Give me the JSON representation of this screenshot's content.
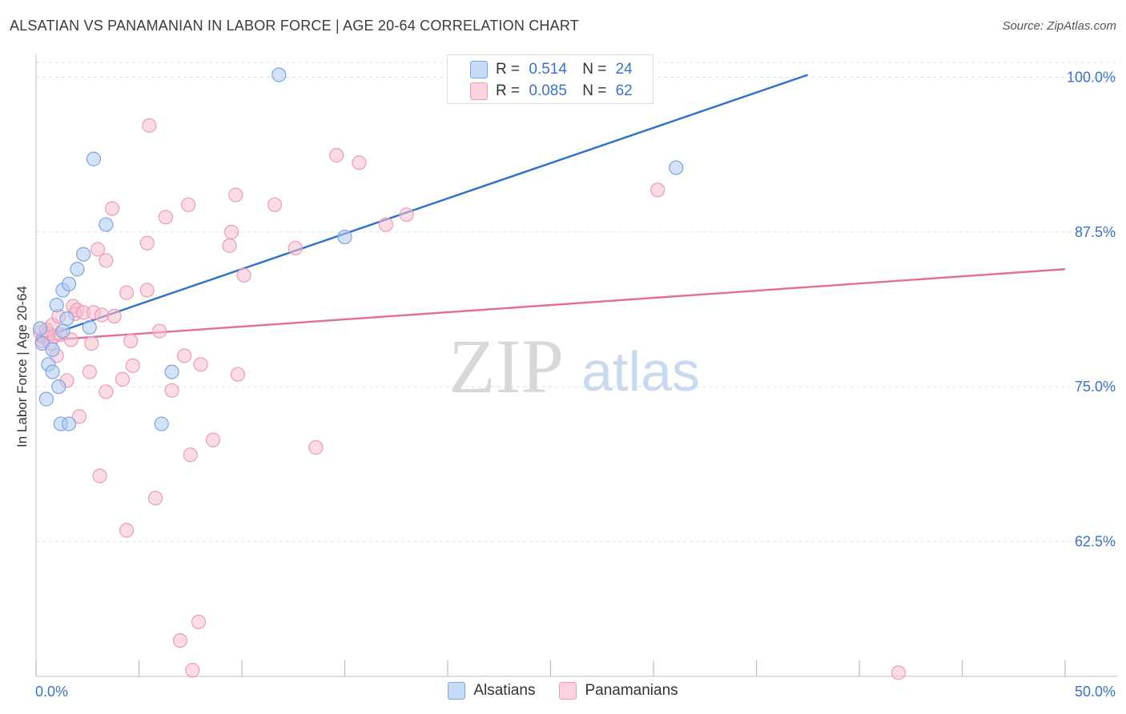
{
  "title": "ALSATIAN VS PANAMANIAN IN LABOR FORCE | AGE 20-64 CORRELATION CHART",
  "source": "Source: ZipAtlas.com",
  "watermark": {
    "zip": "ZIP",
    "atlas": "atlas"
  },
  "colors": {
    "blue_fill": "#aecbf2",
    "blue_stroke": "#7aa6e0",
    "blue_line": "#2e6fd0",
    "pink_fill": "#f8bfd0",
    "pink_stroke": "#ee9ab5",
    "pink_line": "#e56b98",
    "tick_label": "#3b73c8"
  },
  "stats": {
    "r_label": "R =",
    "n_label": "N =",
    "rows": [
      {
        "r": "0.514",
        "n": "24"
      },
      {
        "r": "0.085",
        "n": "62"
      }
    ]
  },
  "legend": [
    "Alsatians",
    "Panamanians"
  ],
  "chart_data": {
    "type": "scatter",
    "title": "ALSATIAN VS PANAMANIAN IN LABOR FORCE | AGE 20-64 CORRELATION CHART",
    "xlabel": "",
    "ylabel": "In Labor Force | Age 20-64",
    "xlim": [
      0,
      50
    ],
    "ylim": [
      51.6,
      101.2
    ],
    "x_tick_labels": {
      "min": "0.0%",
      "max": "50.0%"
    },
    "y_ticks": [
      62.5,
      75.0,
      87.5,
      100.0
    ],
    "y_tick_labels": [
      "62.5%",
      "75.0%",
      "87.5%",
      "100.0%"
    ],
    "grid": true,
    "series": [
      {
        "name": "Alsatians",
        "r": 0.514,
        "n": 24,
        "trend": {
          "x": [
            0,
            37.5
          ],
          "y": [
            78.8,
            100.2
          ]
        },
        "points": [
          [
            0.2,
            79.7
          ],
          [
            0.3,
            78.5
          ],
          [
            0.5,
            74.0
          ],
          [
            0.6,
            76.8
          ],
          [
            0.8,
            78.0
          ],
          [
            0.8,
            76.2
          ],
          [
            1.0,
            81.6
          ],
          [
            1.1,
            75.0
          ],
          [
            1.2,
            72.0
          ],
          [
            1.3,
            82.8
          ],
          [
            1.3,
            79.5
          ],
          [
            1.5,
            80.5
          ],
          [
            1.6,
            83.3
          ],
          [
            1.6,
            72.0
          ],
          [
            2.0,
            84.5
          ],
          [
            2.3,
            85.7
          ],
          [
            2.6,
            79.8
          ],
          [
            2.8,
            93.4
          ],
          [
            3.4,
            88.1
          ],
          [
            6.1,
            72.0
          ],
          [
            6.6,
            76.2
          ],
          [
            11.8,
            100.2
          ],
          [
            15.0,
            87.1
          ],
          [
            31.1,
            92.7
          ]
        ]
      },
      {
        "name": "Panamanians",
        "r": 0.085,
        "n": 62,
        "trend": {
          "x": [
            0,
            50
          ],
          "y": [
            78.7,
            84.5
          ]
        },
        "points": [
          [
            0.2,
            79.4
          ],
          [
            0.3,
            78.7
          ],
          [
            0.4,
            79.0
          ],
          [
            0.5,
            79.6
          ],
          [
            0.6,
            79.3
          ],
          [
            0.7,
            78.5
          ],
          [
            0.8,
            80.0
          ],
          [
            0.9,
            79.1
          ],
          [
            1.0,
            77.5
          ],
          [
            1.1,
            80.7
          ],
          [
            1.2,
            79.2
          ],
          [
            1.5,
            75.5
          ],
          [
            1.7,
            78.8
          ],
          [
            1.8,
            81.5
          ],
          [
            1.9,
            80.9
          ],
          [
            2.0,
            81.2
          ],
          [
            2.1,
            72.6
          ],
          [
            2.3,
            81.0
          ],
          [
            2.6,
            76.2
          ],
          [
            2.7,
            78.5
          ],
          [
            2.8,
            81.0
          ],
          [
            3.0,
            86.1
          ],
          [
            3.1,
            67.8
          ],
          [
            3.2,
            80.8
          ],
          [
            3.4,
            85.2
          ],
          [
            3.4,
            74.6
          ],
          [
            3.7,
            89.4
          ],
          [
            3.8,
            80.7
          ],
          [
            4.2,
            75.6
          ],
          [
            4.4,
            82.6
          ],
          [
            4.4,
            63.4
          ],
          [
            4.6,
            78.7
          ],
          [
            4.7,
            76.7
          ],
          [
            5.4,
            86.6
          ],
          [
            5.4,
            82.8
          ],
          [
            5.5,
            96.1
          ],
          [
            5.8,
            66.0
          ],
          [
            6.0,
            79.5
          ],
          [
            6.3,
            88.7
          ],
          [
            6.6,
            74.7
          ],
          [
            7.0,
            54.5
          ],
          [
            7.2,
            77.5
          ],
          [
            7.4,
            89.7
          ],
          [
            7.5,
            69.5
          ],
          [
            7.6,
            52.1
          ],
          [
            7.9,
            56.0
          ],
          [
            8.0,
            76.8
          ],
          [
            8.6,
            70.7
          ],
          [
            9.4,
            86.4
          ],
          [
            9.5,
            87.5
          ],
          [
            9.7,
            90.5
          ],
          [
            9.8,
            76.0
          ],
          [
            10.1,
            84.0
          ],
          [
            11.6,
            89.7
          ],
          [
            12.6,
            86.2
          ],
          [
            13.6,
            70.1
          ],
          [
            14.6,
            93.7
          ],
          [
            15.7,
            93.1
          ],
          [
            17.0,
            88.1
          ],
          [
            18.0,
            88.9
          ],
          [
            30.2,
            90.9
          ],
          [
            41.9,
            51.9
          ]
        ]
      }
    ]
  }
}
